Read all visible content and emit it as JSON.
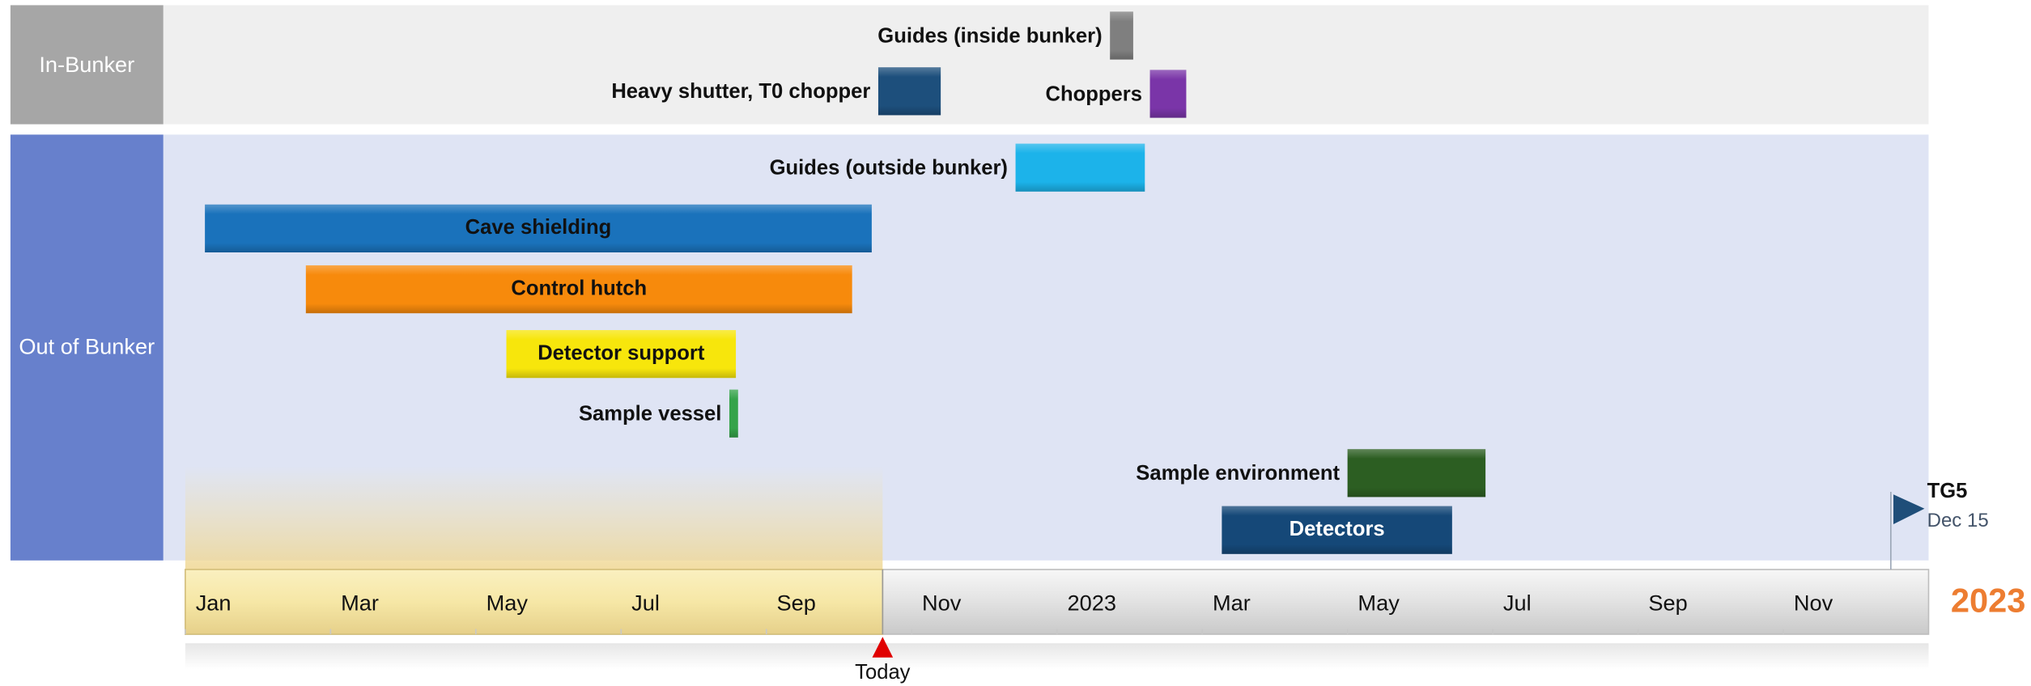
{
  "chart_data": {
    "type": "gantt",
    "groups": [
      "In-Bunker",
      "Out of Bunker"
    ],
    "tasks": [
      {
        "name": "Guides (inside bunker)",
        "group": 0,
        "start": 12.73,
        "end": 13.05,
        "color": "#7f7f7f"
      },
      {
        "name": "Heavy shutter, T0 chopper",
        "group": 0,
        "start": 9.54,
        "end": 10.4,
        "color": "#1d4f7c"
      },
      {
        "name": "Choppers",
        "group": 0,
        "start": 13.28,
        "end": 13.78,
        "color": "#7a35a8"
      },
      {
        "name": "Guides (outside bunker)",
        "group": 1,
        "start": 11.43,
        "end": 13.21,
        "color": "#1cb3ea"
      },
      {
        "name": "Cave shielding",
        "group": 1,
        "start": 0.27,
        "end": 9.45,
        "color": "#1a72bb"
      },
      {
        "name": "Control hutch",
        "group": 1,
        "start": 1.66,
        "end": 9.18,
        "color": "#f78a0c"
      },
      {
        "name": "Detector support",
        "group": 1,
        "start": 4.42,
        "end": 7.58,
        "color": "#f7e60c"
      },
      {
        "name": "Sample vessel",
        "group": 1,
        "start": 7.49,
        "end": 7.61,
        "color": "#35a34a"
      },
      {
        "name": "Sample environment",
        "group": 1,
        "start": 16.0,
        "end": 17.9,
        "color": "#2c5e22"
      },
      {
        "name": "Detectors",
        "group": 1,
        "start": 14.27,
        "end": 17.44,
        "color": "#154878"
      }
    ],
    "xlim": [
      0,
      24
    ],
    "xticks": [
      {
        "value": 0,
        "label": "Jan"
      },
      {
        "value": 2,
        "label": "Mar"
      },
      {
        "value": 4,
        "label": "May"
      },
      {
        "value": 6,
        "label": "Jul"
      },
      {
        "value": 8,
        "label": "Sep"
      },
      {
        "value": 10,
        "label": "Nov"
      },
      {
        "value": 12,
        "label": "2023"
      },
      {
        "value": 14,
        "label": "Mar"
      },
      {
        "value": 16,
        "label": "May"
      },
      {
        "value": 18,
        "label": "Jul"
      },
      {
        "value": 20,
        "label": "Sep"
      },
      {
        "value": 22,
        "label": "Nov"
      }
    ],
    "today": {
      "label": "Today",
      "value": 9.6
    },
    "milestone": {
      "name": "TG5",
      "date": "Dec 15",
      "value": 23.48,
      "color": "#1f4e79"
    },
    "year_label": "2023"
  }
}
